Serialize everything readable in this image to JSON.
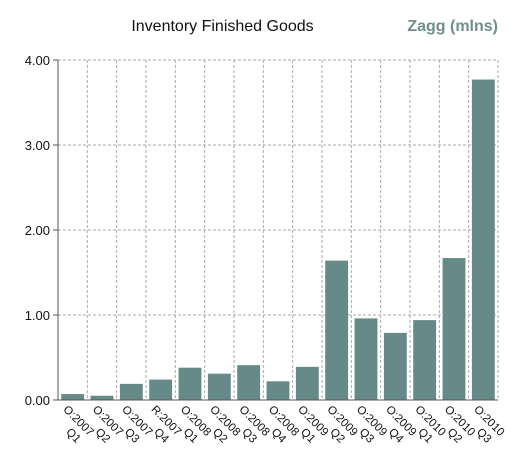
{
  "chart_data": {
    "type": "bar",
    "title": "Inventory Finished Goods",
    "brand": "Zagg (mlns)",
    "xlabel": "",
    "ylabel": "",
    "ylim": [
      0,
      4
    ],
    "yticks": [
      "0.00",
      "1.00",
      "2.00",
      "3.00",
      "4.00"
    ],
    "grid": true,
    "categories": [
      "O:2007 Q1",
      "O:2007 Q2",
      "O:2007 Q3",
      "R:2007 Q4",
      "O:2008 Q1",
      "O:2008 Q2",
      "O:2008 Q3",
      "O:2008 Q4",
      "O:2009 Q1",
      "O:2009 Q2",
      "O:2009 Q3",
      "O:2009 Q4",
      "O:2010 Q1",
      "O:2010 Q2",
      "O:2010 Q3"
    ],
    "values": [
      0.07,
      0.05,
      0.19,
      0.24,
      0.38,
      0.31,
      0.41,
      0.22,
      0.39,
      1.64,
      0.96,
      0.79,
      0.94,
      1.67,
      3.77
    ],
    "colors": {
      "bar": "#668a88",
      "brand": "#6e8f8c",
      "grid": "#aaaaaa",
      "axis": "#555555",
      "text": "#111111"
    }
  }
}
